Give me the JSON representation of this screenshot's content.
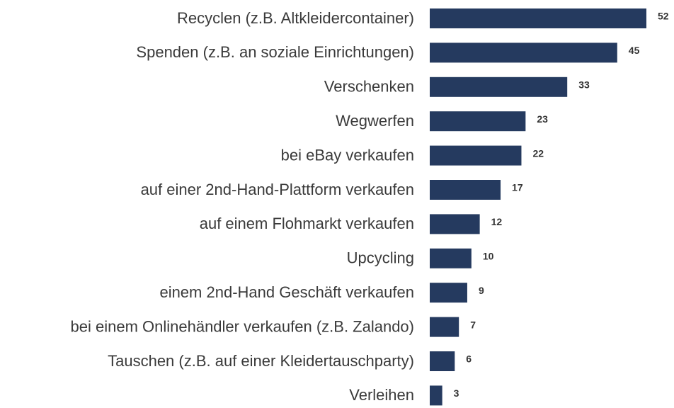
{
  "chart_data": {
    "type": "bar",
    "orientation": "horizontal",
    "color": "#253a5f",
    "categories": [
      "Recyclen (z.B. Altkleidercontainer)",
      "Spenden (z.B. an soziale Einrichtungen)",
      "Verschenken",
      "Wegwerfen",
      "bei eBay verkaufen",
      "auf einer 2nd-Hand-Plattform verkaufen",
      "auf einem Flohmarkt verkaufen",
      "Upcycling",
      "einem 2nd-Hand Geschäft verkaufen",
      "bei einem Onlinehändler verkaufen (z.B. Zalando)",
      "Tauschen (z.B. auf einer Kleidertauschparty)",
      "Verleihen"
    ],
    "values": [
      52,
      45,
      33,
      23,
      22,
      17,
      12,
      10,
      9,
      7,
      6,
      3
    ]
  }
}
